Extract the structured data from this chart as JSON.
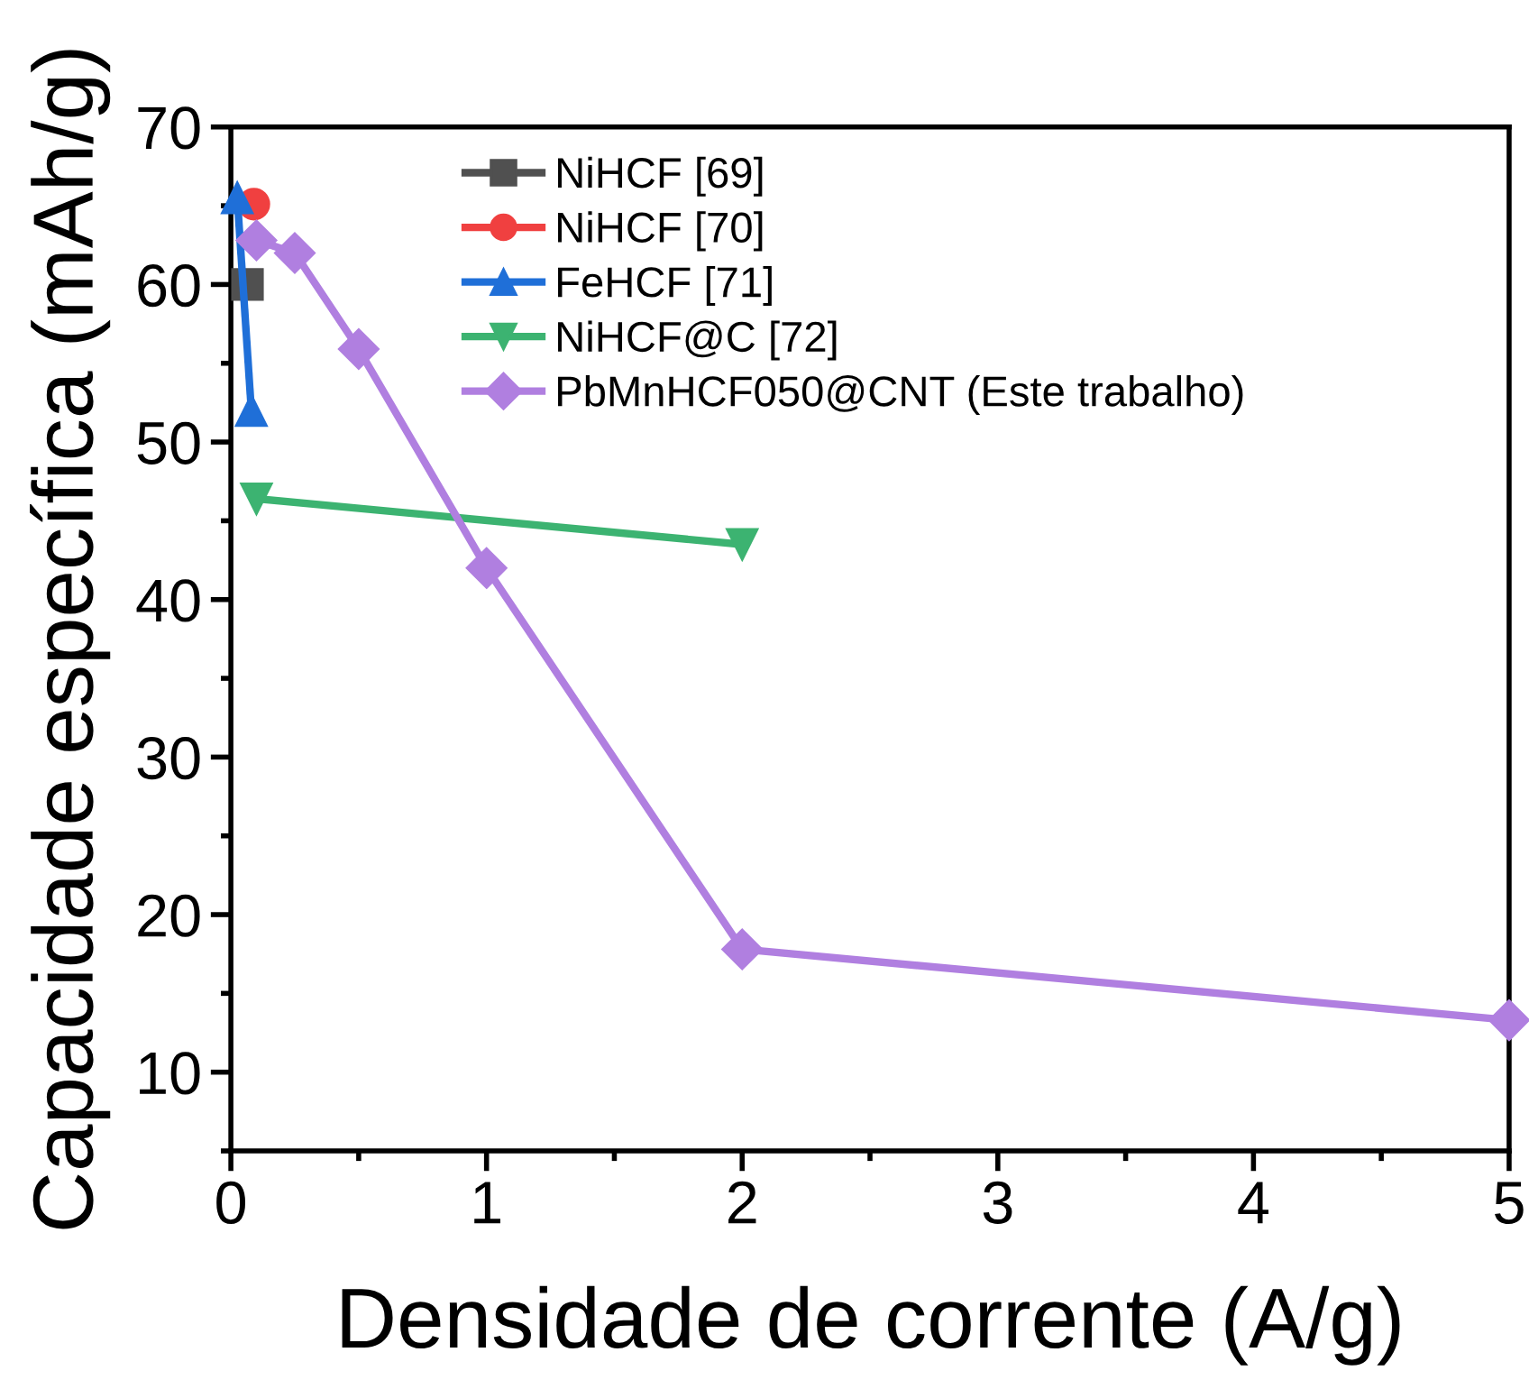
{
  "chart_data": {
    "type": "line",
    "xlabel": "Densidade de corrente (A/g)",
    "ylabel": "Capacidade específica (mAh/g)",
    "xlim": [
      0,
      5
    ],
    "xticks": [
      0,
      1,
      2,
      3,
      4,
      5
    ],
    "ylim": [
      5,
      70
    ],
    "yticks": [
      10,
      20,
      30,
      40,
      50,
      60,
      70
    ],
    "grid": false,
    "legend": "top",
    "line_style": "solid",
    "series": [
      {
        "name": "NiHCF [69]",
        "color": "#505050",
        "marker": "square",
        "x": [
          0.065
        ],
        "values": [
          60
        ]
      },
      {
        "name": "NiHCF [70]",
        "color": "#f04040",
        "marker": "circle",
        "x": [
          0.09
        ],
        "values": [
          65.1
        ]
      },
      {
        "name": "FeHCF [71]",
        "color": "#1f6fd8",
        "marker": "triangle",
        "x": [
          0.025,
          0.08
        ],
        "values": [
          65.5,
          52
        ]
      },
      {
        "name": "NiHCF@C [72]",
        "color": "#3cb371",
        "marker": "triangle_down",
        "x": [
          0.1,
          2
        ],
        "values": [
          46.4,
          43.5
        ]
      },
      {
        "name": "PbMnHCF050@CNT (Este trabalho)",
        "color": "#b07fe0",
        "marker": "diamond",
        "x": [
          0.1,
          0.25,
          0.5,
          1,
          2,
          5
        ],
        "values": [
          62.8,
          62,
          55.9,
          42,
          17.8,
          13.3
        ]
      }
    ]
  }
}
